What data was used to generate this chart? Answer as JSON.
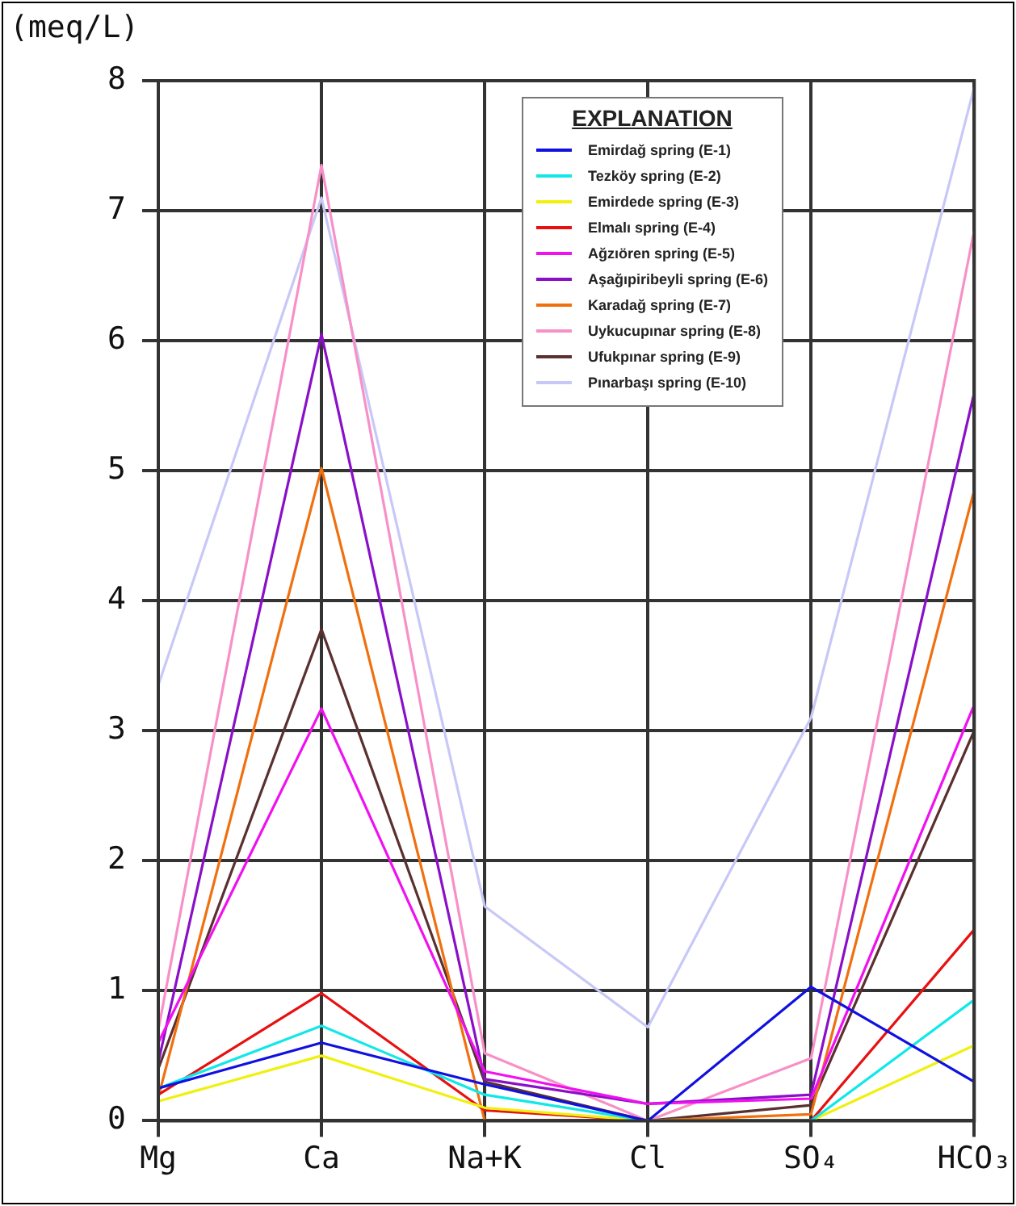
{
  "chart_data": {
    "type": "line",
    "ylabel": "(meq/L)",
    "legend_title": "EXPLANATION",
    "categories": [
      "Mg",
      "Ca",
      "Na+K",
      "Cl",
      "SO₄",
      "HCO₃"
    ],
    "ylim": [
      0,
      8
    ],
    "yticks": [
      0,
      1,
      2,
      3,
      4,
      5,
      6,
      7,
      8
    ],
    "grid": true,
    "legend": "top right",
    "marker": "none",
    "line_style": "solid",
    "series": [
      {
        "name": "Emirdağ spring (E-1)",
        "color": "#1010e0",
        "values": [
          0.25,
          0.6,
          0.28,
          0,
          1.03,
          0.3
        ]
      },
      {
        "name": "Tezköy spring (E-2)",
        "color": "#10e8e8",
        "values": [
          0.25,
          0.73,
          0.2,
          0,
          0,
          0.93
        ]
      },
      {
        "name": "Emirdede spring (E-3)",
        "color": "#f0f010",
        "values": [
          0.15,
          0.5,
          0.1,
          0,
          0,
          0.58
        ]
      },
      {
        "name": "Elmalı spring (E-4)",
        "color": "#e81010",
        "values": [
          0.2,
          0.98,
          0.08,
          0,
          0,
          1.47
        ]
      },
      {
        "name": "Ağzıören spring (E-5)",
        "color": "#f010f0",
        "values": [
          0.6,
          3.17,
          0.38,
          0.13,
          0.17,
          3.2
        ]
      },
      {
        "name": "Aşağıpiribeyli spring (E-6)",
        "color": "#8a10c8",
        "values": [
          0.45,
          6.05,
          0.32,
          0.13,
          0.2,
          5.6
        ]
      },
      {
        "name": "Karadağ spring (E-7)",
        "color": "#f07010",
        "values": [
          0.18,
          5.02,
          0,
          0,
          0.05,
          4.85
        ]
      },
      {
        "name": "Uykucupınar spring (E-8)",
        "color": "#f890c8",
        "values": [
          0.7,
          7.35,
          0.52,
          0,
          0.48,
          6.85
        ]
      },
      {
        "name": "Ufukpınar spring (E-9)",
        "color": "#5a3030",
        "values": [
          0.4,
          3.78,
          0.3,
          0,
          0.12,
          3.0
        ]
      },
      {
        "name": "Pınarbaşı spring (E-10)",
        "color": "#c8c8f8",
        "values": [
          3.35,
          7.1,
          1.65,
          0.72,
          3.1,
          7.95
        ]
      }
    ]
  }
}
